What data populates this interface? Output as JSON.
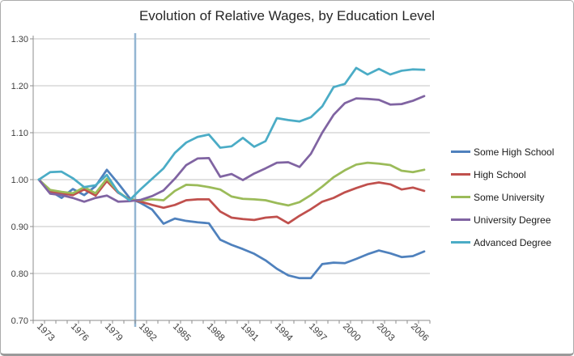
{
  "chart_data": {
    "type": "line",
    "title": "Evolution of Relative Wages, by Education Level",
    "x_first_year": 1973,
    "x_last_year": 2007,
    "x_tick_labels": [
      "1973",
      "1976",
      "1979",
      "1982",
      "1985",
      "1988",
      "1991",
      "1994",
      "1997",
      "2000",
      "2003",
      "2006"
    ],
    "y_tick_labels": [
      "1.30",
      "1.20",
      "1.10",
      "1.00",
      "0.90",
      "0.80",
      "0.70"
    ],
    "y_ticks": [
      1.3,
      1.2,
      1.1,
      1.0,
      0.9,
      0.8,
      0.7
    ],
    "ylim": [
      0.7,
      1.3
    ],
    "grid": "horizontal",
    "legend_position": "right",
    "vline": {
      "x": 1981.5,
      "color": "#94b6d2"
    },
    "colors": {
      "grid": "#c3c3c3",
      "axis": "#8e8e8e",
      "tick_text": "#3f3f3f"
    },
    "series": [
      {
        "name": "Some High School",
        "color": "#4f81bd",
        "values": [
          1.0,
          0.976,
          0.961,
          0.98,
          0.967,
          0.986,
          1.021,
          0.992,
          0.961,
          0.95,
          0.936,
          0.906,
          0.917,
          0.912,
          0.909,
          0.907,
          0.872,
          0.861,
          0.852,
          0.842,
          0.828,
          0.81,
          0.796,
          0.79,
          0.79,
          0.82,
          0.823,
          0.822,
          0.831,
          0.841,
          0.849,
          0.843,
          0.835,
          0.837,
          0.847
        ]
      },
      {
        "name": "High School",
        "color": "#c0504d",
        "values": [
          1.0,
          0.973,
          0.971,
          0.967,
          0.979,
          0.966,
          0.997,
          0.972,
          0.958,
          0.953,
          0.946,
          0.94,
          0.946,
          0.956,
          0.958,
          0.958,
          0.932,
          0.919,
          0.916,
          0.914,
          0.919,
          0.921,
          0.907,
          0.923,
          0.937,
          0.953,
          0.961,
          0.973,
          0.982,
          0.99,
          0.994,
          0.99,
          0.979,
          0.983,
          0.976
        ]
      },
      {
        "name": "Some University",
        "color": "#9bbb59",
        "values": [
          1.0,
          0.978,
          0.974,
          0.971,
          0.984,
          0.971,
          1.002,
          0.974,
          0.957,
          0.956,
          0.958,
          0.956,
          0.976,
          0.989,
          0.988,
          0.984,
          0.979,
          0.964,
          0.959,
          0.958,
          0.956,
          0.95,
          0.945,
          0.952,
          0.967,
          0.985,
          1.005,
          1.02,
          1.032,
          1.036,
          1.034,
          1.031,
          1.019,
          1.016,
          1.021
        ]
      },
      {
        "name": "University Degree",
        "color": "#8064a2",
        "values": [
          1.0,
          0.97,
          0.967,
          0.961,
          0.953,
          0.961,
          0.966,
          0.953,
          0.954,
          0.957,
          0.965,
          0.977,
          1.002,
          1.031,
          1.045,
          1.046,
          1.006,
          1.012,
          0.999,
          1.013,
          1.024,
          1.036,
          1.037,
          1.027,
          1.055,
          1.1,
          1.138,
          1.163,
          1.173,
          1.172,
          1.17,
          1.16,
          1.161,
          1.168,
          1.178
        ]
      },
      {
        "name": "Advanced Degree",
        "color": "#4bacc6",
        "values": [
          1.0,
          1.016,
          1.017,
          1.003,
          0.984,
          0.988,
          1.01,
          0.973,
          0.956,
          0.98,
          1.002,
          1.024,
          1.057,
          1.079,
          1.091,
          1.096,
          1.068,
          1.071,
          1.089,
          1.07,
          1.082,
          1.131,
          1.127,
          1.124,
          1.133,
          1.156,
          1.197,
          1.204,
          1.238,
          1.224,
          1.236,
          1.224,
          1.232,
          1.235,
          1.234
        ]
      }
    ]
  }
}
